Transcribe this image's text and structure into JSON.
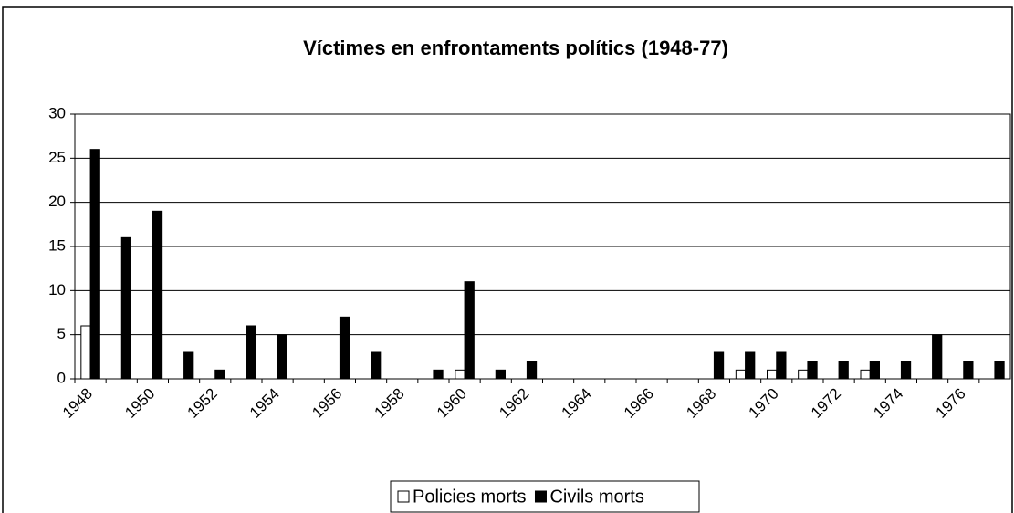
{
  "chart_data": {
    "type": "bar",
    "title": "Víctimes en enfrontaments polítics (1948-77)",
    "categories": [
      "1948",
      null,
      "1950",
      null,
      "1952",
      null,
      "1954",
      null,
      "1956",
      null,
      "1958",
      null,
      "1960",
      null,
      "1962",
      null,
      "1964",
      null,
      "1966",
      null,
      "1968",
      null,
      "1970",
      null,
      "1972",
      null,
      "1974",
      null,
      "1976",
      null
    ],
    "series": [
      {
        "name": "Policies morts",
        "color": "#ffffff",
        "values": [
          6,
          0,
          0,
          0,
          0,
          0,
          0,
          0,
          0,
          0,
          0,
          0,
          1,
          0,
          0,
          0,
          0,
          0,
          0,
          0,
          0,
          1,
          1,
          1,
          0,
          1,
          0,
          0,
          0,
          0
        ]
      },
      {
        "name": "Civils morts",
        "color": "#000000",
        "values": [
          26,
          16,
          19,
          3,
          1,
          6,
          5,
          0,
          7,
          3,
          0,
          1,
          11,
          1,
          2,
          0,
          0,
          0,
          0,
          0,
          3,
          3,
          3,
          2,
          2,
          2,
          2,
          5,
          2,
          2
        ]
      }
    ],
    "ylim": [
      0,
      30
    ],
    "yticks": [
      0,
      5,
      10,
      15,
      20,
      25,
      30
    ],
    "grid": true,
    "legend": "bottom"
  }
}
